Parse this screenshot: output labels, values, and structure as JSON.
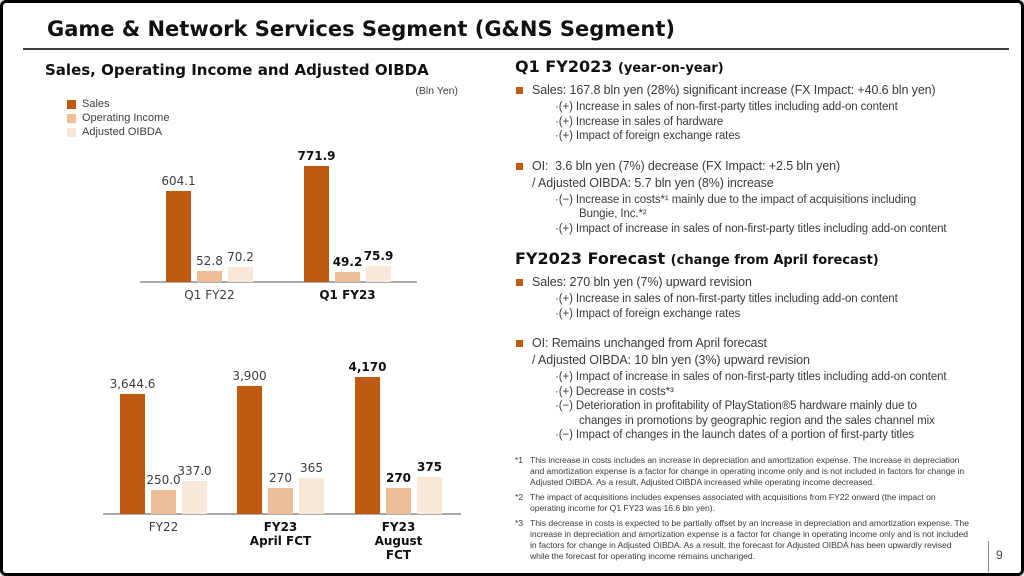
{
  "accent_color": "#C05A11",
  "slide": {
    "title": "Game & Network Services Segment (G&NS Segment)",
    "page_number": "9"
  },
  "chart_panel": {
    "title": "Sales, Operating Income and Adjusted OIBDA",
    "unit": "(Bln Yen)",
    "legend": [
      {
        "label": "Sales",
        "color": "#C05A11"
      },
      {
        "label": "Operating Income",
        "color": "#EFBE97"
      },
      {
        "label": "Adjusted OIBDA",
        "color": "#F9E7D8"
      }
    ]
  },
  "chart_data": [
    {
      "type": "bar",
      "title": "Q1 year-on-year comparison",
      "unit": "Bln Yen",
      "categories": [
        "Q1 FY22",
        "Q1 FY23"
      ],
      "series": [
        {
          "name": "Sales",
          "values": [
            604.1,
            771.9
          ]
        },
        {
          "name": "Operating Income",
          "values": [
            52.8,
            49.2
          ]
        },
        {
          "name": "Adjusted OIBDA",
          "values": [
            70.2,
            75.9
          ]
        }
      ],
      "value_labels": [
        [
          "604.1",
          "52.8",
          "70.2"
        ],
        [
          "771.9",
          "49.2",
          "75.9"
        ]
      ],
      "category_bold": [
        false,
        true
      ],
      "values_bold": [
        false,
        true
      ],
      "legend_position": "top-left",
      "grid": false,
      "axes_labeled": false
    },
    {
      "type": "bar",
      "title": "FY2023 forecast comparison",
      "unit": "Bln Yen",
      "categories": [
        "FY22",
        "FY23\nApril FCT",
        "FY23\nAugust FCT"
      ],
      "series": [
        {
          "name": "Sales",
          "values": [
            3644.6,
            3900,
            4170
          ]
        },
        {
          "name": "Operating Income",
          "values": [
            250.0,
            270,
            270
          ]
        },
        {
          "name": "Adjusted OIBDA",
          "values": [
            337.0,
            365,
            375
          ]
        }
      ],
      "value_labels": [
        [
          "3,644.6",
          "250.0",
          "337.0"
        ],
        [
          "3,900",
          "270",
          "365"
        ],
        [
          "4,170",
          "270",
          "375"
        ]
      ],
      "category_bold": [
        false,
        true,
        true
      ],
      "values_bold": [
        false,
        false,
        true
      ],
      "legend_position": "top-left",
      "grid": false,
      "axes_labeled": false
    }
  ],
  "right": {
    "sections": [
      {
        "title": "Q1 FY2023",
        "subtitle": "(year-on-year)",
        "bullets": [
          {
            "lines": [
              "Sales: 167.8 bln yen (28%) significant increase (FX Impact: +40.6 bln yen)"
            ],
            "subs": [
              [
                "·(+) Increase in sales of non-first-party titles including add-on content"
              ],
              [
                "·(+) Increase in sales of hardware"
              ],
              [
                "·(+) Impact of foreign exchange rates"
              ]
            ]
          },
          {
            "lines": [
              "OI:  3.6 bln yen (7%) decrease (FX Impact: +2.5 bln yen)",
              "/ Adjusted OIBDA: 5.7 bln yen (8%) increase"
            ],
            "subs": [
              [
                "·(−) Increase in costs*¹ mainly due to the impact of acquisitions including",
                "Bungie, Inc.*²"
              ],
              [
                "·(+) Impact of increase in sales of non-first-party titles including add-on content"
              ]
            ]
          }
        ]
      },
      {
        "title": "FY2023 Forecast",
        "subtitle": "(change from April forecast)",
        "bullets": [
          {
            "lines": [
              "Sales: 270 bln yen (7%) upward revision"
            ],
            "subs": [
              [
                "·(+) Increase in sales of non-first-party titles including add-on content"
              ],
              [
                "·(+) Impact of foreign exchange rates"
              ]
            ]
          },
          {
            "lines": [
              "OI: Remains unchanged from April forecast",
              "/ Adjusted OIBDA: 10 bln yen (3%) upward revision"
            ],
            "subs": [
              [
                "·(+) Impact of increase in sales of non-first-party titles including add-on content"
              ],
              [
                "·(+) Decrease in costs*³"
              ],
              [
                "·(−) Deterioration in profitability of PlayStation®5 hardware mainly due to",
                "changes in promotions by geographic region and the sales channel mix"
              ],
              [
                "·(−) Impact of changes in the launch dates of a portion of first-party titles"
              ]
            ]
          }
        ]
      }
    ],
    "footnotes": [
      {
        "marker": "*1",
        "lines": [
          "This increase in costs includes an increase in depreciation and amortization expense. The increase in depreciation",
          "and amortization expense is a factor for change in operating income only and is not included in factors for change in",
          "Adjusted OIBDA. As a result, Adjusted OIBDA increased while operating income decreased."
        ]
      },
      {
        "marker": "*2",
        "lines": [
          "The impact of acquisitions includes expenses associated with acquisitions from FY22 onward (the impact on",
          "operating income for Q1 FY23 was 16.6 bln yen)."
        ]
      },
      {
        "marker": "*3",
        "lines": [
          "This decrease in costs is expected to be partially offset by an increase in depreciation and amortization expense. The",
          "increase in depreciation and amortization expense is a factor for change in operating income only and is not included",
          "in factors for change in Adjusted OIBDA. As a result, the forecast for Adjusted OIBDA has been upwardly revised",
          "while the forecast for operating income remains unchanged."
        ]
      }
    ]
  }
}
